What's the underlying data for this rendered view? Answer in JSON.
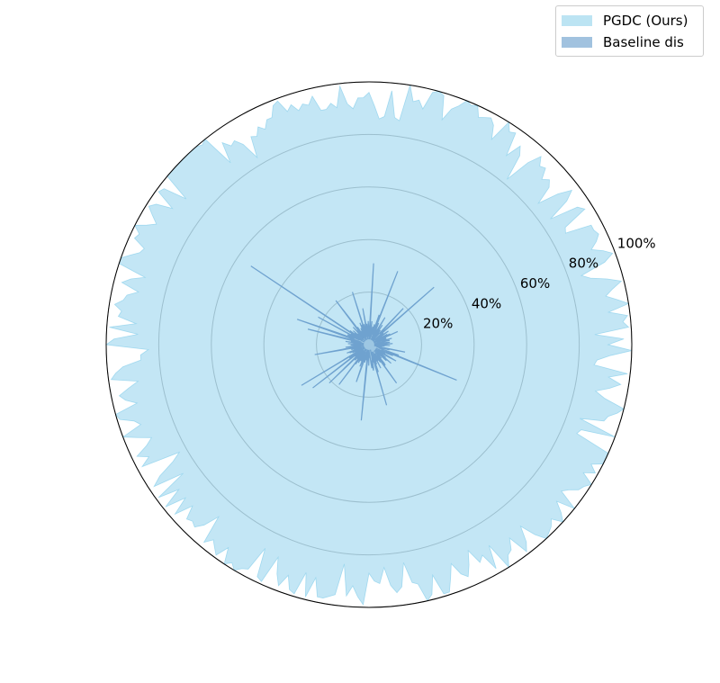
{
  "chart_data": {
    "type": "area",
    "projection": "polar",
    "rlim": [
      0,
      100
    ],
    "r_ticks": [
      20,
      40,
      60,
      80,
      100
    ],
    "r_tick_labels": [
      "20%",
      "40%",
      "60%",
      "80%",
      "100%"
    ],
    "grid": true,
    "legend_position": "top-right",
    "series": [
      {
        "name": "PGDC (Ours)",
        "color": "#87ceeb",
        "values": [
          91,
          97,
          86,
          99,
          97,
          99,
          92,
          100,
          96,
          92,
          95,
          99,
          94,
          88,
          85,
          95,
          99,
          96,
          92,
          95,
          97,
          96,
          96,
          86,
          87,
          97,
          95,
          84,
          93,
          97,
          92,
          84,
          91,
          93,
          91,
          95,
          94,
          97,
          92,
          82,
          92,
          95,
          89,
          98,
          97,
          100,
          91,
          96,
          98,
          97,
          96,
          100,
          99,
          100,
          97,
          95,
          90,
          99,
          100,
          99,
          92,
          95,
          94,
          100,
          86,
          87,
          97,
          87,
          86,
          91,
          96,
          94,
          94,
          90,
          92,
          99,
          91,
          93,
          91,
          91,
          97,
          94,
          95,
          93,
          96,
          94,
          99,
          98,
          94,
          94,
          91,
          93,
          90,
          91,
          83,
          90,
          93,
          92,
          95,
          87,
          100,
          99,
          100,
          100,
          100,
          100,
          100,
          100,
          100,
          100,
          89,
          98,
          99,
          91,
          97,
          99,
          96,
          93,
          96,
          100,
          97,
          98,
          93,
          94,
          97,
          100,
          100,
          89,
          94,
          97,
          90,
          94,
          95,
          98,
          95,
          96,
          89,
          99,
          88,
          97,
          100,
          84,
          87,
          87,
          94,
          97,
          99,
          89,
          93,
          97,
          95,
          91,
          100,
          99,
          94,
          92,
          100,
          95,
          90,
          93,
          98,
          94,
          98,
          83,
          87,
          94,
          98,
          86,
          99,
          91,
          99,
          91,
          98,
          91,
          96,
          95,
          96,
          93,
          87,
          98,
          95,
          97,
          99,
          94,
          100,
          98,
          100,
          98,
          97,
          87,
          98,
          99,
          88,
          94,
          98,
          93,
          98,
          99,
          90,
          99,
          91,
          98,
          98,
          97,
          96,
          84,
          96,
          92,
          96,
          99,
          87,
          90,
          91,
          85,
          92,
          95,
          93,
          84,
          92,
          93,
          100,
          98,
          91,
          99,
          99,
          94,
          89,
          94,
          96,
          92,
          87,
          93,
          91,
          98,
          89,
          100,
          96,
          95,
          91,
          99,
          96,
          90,
          96,
          100,
          99,
          98,
          96,
          100,
          97,
          93,
          100,
          92,
          94,
          97,
          98,
          100,
          95,
          99,
          96,
          100,
          100,
          100,
          86,
          87,
          100,
          85,
          94,
          95,
          98,
          100,
          92,
          88,
          93,
          97,
          92,
          99,
          86,
          87,
          92,
          100
        ]
      },
      {
        "name": "Baseline dis",
        "color": "#6fa2cf",
        "values": [
          3,
          6,
          9,
          2,
          3,
          8,
          5,
          2,
          3,
          8,
          6,
          5,
          9,
          3,
          7,
          5,
          2,
          7,
          2,
          12,
          4,
          9,
          2,
          8,
          3,
          3,
          5,
          9,
          6,
          4,
          7,
          2,
          33,
          8,
          6,
          6,
          19,
          4,
          2,
          3,
          7,
          6,
          3,
          9,
          4,
          2,
          12,
          7,
          5,
          3,
          6,
          9,
          2,
          30,
          7,
          12,
          5,
          4,
          8,
          3,
          7,
          5,
          2,
          6,
          9,
          4,
          3,
          31,
          7,
          2,
          6,
          9,
          5,
          3,
          8,
          4,
          7,
          14,
          2,
          5,
          8,
          4,
          6,
          21,
          3,
          8,
          5,
          9,
          2,
          4,
          7,
          3,
          5,
          6,
          4,
          8,
          2,
          9,
          21,
          3,
          7,
          5,
          9,
          4,
          3,
          6,
          2,
          8,
          5,
          7,
          4,
          9,
          3,
          54,
          5,
          8,
          2,
          22,
          6,
          4,
          9,
          7,
          6,
          13,
          29,
          3,
          6,
          8,
          24,
          5,
          2,
          7,
          4,
          9,
          3,
          6,
          5,
          8,
          2,
          4,
          7,
          3,
          5,
          6,
          9,
          2,
          4,
          21,
          8,
          5,
          3,
          7,
          4,
          6,
          2,
          9,
          5,
          8,
          3,
          7,
          4,
          6,
          2,
          30,
          5,
          9,
          3,
          8,
          27,
          2,
          7,
          4,
          6,
          21,
          5,
          3,
          8,
          4,
          7,
          2,
          19,
          5,
          9,
          3,
          6,
          8,
          4,
          2,
          7,
          5,
          3,
          9,
          6,
          4,
          15,
          8,
          2,
          5,
          7,
          3,
          4,
          6,
          2,
          9,
          29,
          3,
          6,
          4,
          8,
          2,
          5,
          3,
          4,
          7,
          9,
          6,
          10,
          9,
          5,
          7,
          2,
          24,
          5,
          11,
          3,
          8,
          4,
          7,
          4,
          10,
          3,
          5,
          7,
          6,
          8,
          4,
          18,
          5,
          10,
          9,
          3,
          7,
          5,
          6,
          4,
          9,
          3,
          11,
          6,
          8,
          5,
          3,
          6,
          9,
          12,
          4,
          7,
          3,
          8,
          10,
          5,
          36,
          7,
          12,
          4,
          5,
          3,
          8,
          6,
          14,
          2,
          5,
          3,
          4,
          6,
          2,
          8,
          5
        ]
      }
    ]
  }
}
